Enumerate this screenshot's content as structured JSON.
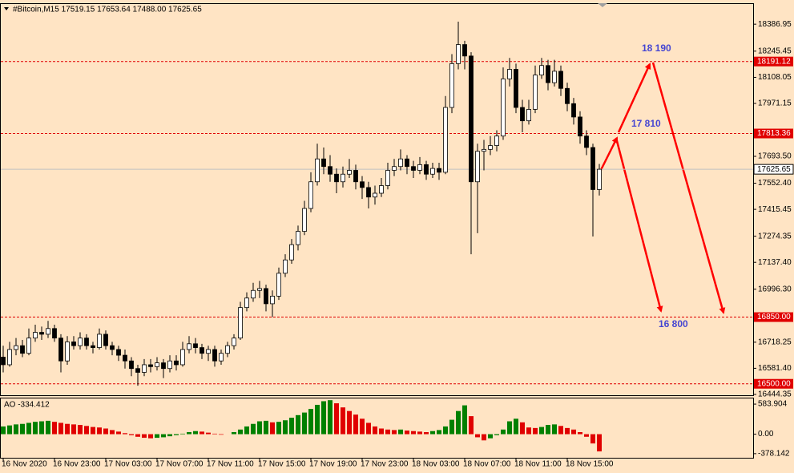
{
  "chart_data": {
    "type": "candlestick",
    "title": "#Bitcoin,M15  17519.15 17653.64 17488.00 17625.65",
    "up_color": "#ffffff",
    "down_color": "#000000",
    "ylim": [
      16440,
      18497
    ],
    "yticks": [
      {
        "value": 18386.95,
        "label": "18386.95"
      },
      {
        "value": 18245.45,
        "label": "18245.45"
      },
      {
        "value": 18108.05,
        "label": "18108.05"
      },
      {
        "value": 17971.15,
        "label": "17971.15"
      },
      {
        "value": 17693.5,
        "label": "17693.50"
      },
      {
        "value": 17552.4,
        "label": "17552.40"
      },
      {
        "value": 17415.45,
        "label": "17415.45"
      },
      {
        "value": 17274.35,
        "label": "17274.35"
      },
      {
        "value": 17137.4,
        "label": "17137.40"
      },
      {
        "value": 16996.3,
        "label": "16996.30"
      },
      {
        "value": 16718.25,
        "label": "16718.25"
      },
      {
        "value": 16581.4,
        "label": "16581.40"
      },
      {
        "value": 16444.35,
        "label": "16444.35"
      }
    ],
    "levels": [
      {
        "value": 18191.12,
        "label": "18191.12"
      },
      {
        "value": 17813.36,
        "label": "17813.36"
      },
      {
        "value": 16850,
        "label": "16850.00"
      },
      {
        "value": 16500,
        "label": "16500.00"
      }
    ],
    "level_color": "#e00000",
    "current_price": {
      "value": 17625.65,
      "label": "17625.65"
    },
    "annotations": [
      "18 190",
      "17 810",
      "16 800"
    ],
    "xticks": [
      {
        "value": 0,
        "label": "16 Nov 2020"
      },
      {
        "value": 8,
        "label": "16 Nov 23:00"
      },
      {
        "value": 16,
        "label": "17 Nov 03:00"
      },
      {
        "value": 24,
        "label": "17 Nov 07:00"
      },
      {
        "value": 32,
        "label": "17 Nov 11:00"
      },
      {
        "value": 40,
        "label": "17 Nov 15:00"
      },
      {
        "value": 48,
        "label": "17 Nov 19:00"
      },
      {
        "value": 56,
        "label": "17 Nov 23:00"
      },
      {
        "value": 64,
        "label": "18 Nov 03:00"
      },
      {
        "value": 72,
        "label": "18 Nov 07:00"
      },
      {
        "value": 80,
        "label": "18 Nov 11:00"
      },
      {
        "value": 88,
        "label": "18 Nov 15:00"
      }
    ],
    "candles": [
      [
        16640,
        16700,
        16560,
        16600
      ],
      [
        16600,
        16720,
        16590,
        16680
      ],
      [
        16680,
        16740,
        16650,
        16700
      ],
      [
        16700,
        16730,
        16640,
        16660
      ],
      [
        16660,
        16790,
        16650,
        16740
      ],
      [
        16740,
        16810,
        16720,
        16770
      ],
      [
        16770,
        16800,
        16730,
        16760
      ],
      [
        16760,
        16830,
        16740,
        16790
      ],
      [
        16790,
        16810,
        16720,
        16740
      ],
      [
        16740,
        16760,
        16560,
        16620
      ],
      [
        16620,
        16750,
        16600,
        16720
      ],
      [
        16720,
        16750,
        16680,
        16700
      ],
      [
        16700,
        16770,
        16680,
        16740
      ],
      [
        16740,
        16760,
        16680,
        16700
      ],
      [
        16700,
        16720,
        16660,
        16690
      ],
      [
        16690,
        16790,
        16680,
        16760
      ],
      [
        16760,
        16780,
        16680,
        16700
      ],
      [
        16700,
        16720,
        16650,
        16680
      ],
      [
        16680,
        16700,
        16620,
        16650
      ],
      [
        16650,
        16680,
        16580,
        16620
      ],
      [
        16620,
        16640,
        16540,
        16580
      ],
      [
        16580,
        16600,
        16490,
        16560
      ],
      [
        16560,
        16630,
        16540,
        16600
      ],
      [
        16600,
        16630,
        16560,
        16590
      ],
      [
        16590,
        16640,
        16570,
        16610
      ],
      [
        16610,
        16630,
        16530,
        16580
      ],
      [
        16580,
        16650,
        16560,
        16620
      ],
      [
        16620,
        16650,
        16570,
        16600
      ],
      [
        16600,
        16720,
        16590,
        16680
      ],
      [
        16680,
        16750,
        16660,
        16710
      ],
      [
        16710,
        16740,
        16660,
        16690
      ],
      [
        16690,
        16710,
        16630,
        16660
      ],
      [
        16660,
        16700,
        16620,
        16680
      ],
      [
        16680,
        16700,
        16590,
        16620
      ],
      [
        16620,
        16680,
        16600,
        16660
      ],
      [
        16660,
        16720,
        16640,
        16700
      ],
      [
        16700,
        16760,
        16680,
        16740
      ],
      [
        16740,
        16930,
        16730,
        16900
      ],
      [
        16900,
        16980,
        16880,
        16950
      ],
      [
        16950,
        17030,
        16930,
        16990
      ],
      [
        16990,
        17040,
        16950,
        17000
      ],
      [
        17000,
        17020,
        16880,
        16920
      ],
      [
        16920,
        16990,
        16850,
        16960
      ],
      [
        16960,
        17110,
        16940,
        17080
      ],
      [
        17080,
        17180,
        17060,
        17150
      ],
      [
        17150,
        17260,
        17130,
        17230
      ],
      [
        17230,
        17330,
        17200,
        17300
      ],
      [
        17300,
        17460,
        17280,
        17420
      ],
      [
        17420,
        17610,
        17400,
        17560
      ],
      [
        17560,
        17760,
        17540,
        17680
      ],
      [
        17680,
        17740,
        17600,
        17640
      ],
      [
        17640,
        17700,
        17560,
        17600
      ],
      [
        17600,
        17630,
        17500,
        17560
      ],
      [
        17560,
        17640,
        17530,
        17600
      ],
      [
        17600,
        17680,
        17580,
        17620
      ],
      [
        17620,
        17650,
        17520,
        17560
      ],
      [
        17560,
        17590,
        17470,
        17530
      ],
      [
        17530,
        17560,
        17420,
        17480
      ],
      [
        17480,
        17540,
        17440,
        17500
      ],
      [
        17500,
        17580,
        17480,
        17540
      ],
      [
        17540,
        17660,
        17520,
        17620
      ],
      [
        17620,
        17680,
        17590,
        17640
      ],
      [
        17640,
        17730,
        17620,
        17680
      ],
      [
        17680,
        17700,
        17600,
        17640
      ],
      [
        17640,
        17670,
        17580,
        17620
      ],
      [
        17620,
        17690,
        17600,
        17650
      ],
      [
        17650,
        17670,
        17570,
        17600
      ],
      [
        17600,
        17660,
        17580,
        17630
      ],
      [
        17630,
        17660,
        17570,
        17610
      ],
      [
        17610,
        18010,
        17600,
        17950
      ],
      [
        17950,
        18230,
        17920,
        18180
      ],
      [
        18180,
        18400,
        18150,
        18280
      ],
      [
        18280,
        18300,
        18150,
        18220
      ],
      [
        18220,
        18240,
        17180,
        17560
      ],
      [
        17560,
        17760,
        17290,
        17720
      ],
      [
        17720,
        17780,
        17620,
        17730
      ],
      [
        17730,
        17800,
        17700,
        17750
      ],
      [
        17750,
        17830,
        17720,
        17800
      ],
      [
        17800,
        18160,
        17780,
        18100
      ],
      [
        18100,
        18210,
        18060,
        18150
      ],
      [
        18150,
        18180,
        17920,
        17950
      ],
      [
        17950,
        17990,
        17820,
        17880
      ],
      [
        17880,
        17990,
        17860,
        17940
      ],
      [
        17940,
        18170,
        17920,
        18120
      ],
      [
        18120,
        18210,
        18100,
        18170
      ],
      [
        18170,
        18200,
        18040,
        18080
      ],
      [
        18080,
        18200,
        18060,
        18140
      ],
      [
        18140,
        18170,
        18010,
        18050
      ],
      [
        18050,
        18080,
        17930,
        17970
      ],
      [
        17970,
        18000,
        17860,
        17900
      ],
      [
        17900,
        17930,
        17760,
        17800
      ],
      [
        17800,
        17830,
        17700,
        17740
      ],
      [
        17740,
        17760,
        17273,
        17519.15
      ],
      [
        17519.15,
        17653.64,
        17488,
        17625.65
      ]
    ],
    "indicator": {
      "title": "AO -334.412",
      "up_color": "#008000",
      "down_color": "#e00000",
      "ylim": [
        -458,
        694
      ],
      "yticks": [
        583.904,
        {
          "value": 0,
          "label": "0.00"
        },
        -378.142
      ],
      "values": [
        150,
        170,
        190,
        200,
        220,
        240,
        250,
        260,
        240,
        220,
        200,
        190,
        180,
        160,
        140,
        130,
        110,
        80,
        50,
        20,
        -20,
        -50,
        -70,
        -80,
        -70,
        -60,
        -40,
        -20,
        10,
        40,
        60,
        50,
        30,
        10,
        -10,
        0,
        40,
        90,
        150,
        200,
        250,
        260,
        230,
        240,
        270,
        320,
        370,
        420,
        490,
        570,
        640,
        660,
        600,
        520,
        450,
        380,
        300,
        220,
        150,
        110,
        90,
        80,
        90,
        70,
        60,
        50,
        40,
        60,
        80,
        150,
        280,
        450,
        560,
        350,
        -60,
        -120,
        -80,
        -20,
        90,
        250,
        300,
        230,
        130,
        120,
        140,
        180,
        190,
        160,
        120,
        90,
        40,
        -50,
        -180,
        -334.412
      ]
    }
  }
}
